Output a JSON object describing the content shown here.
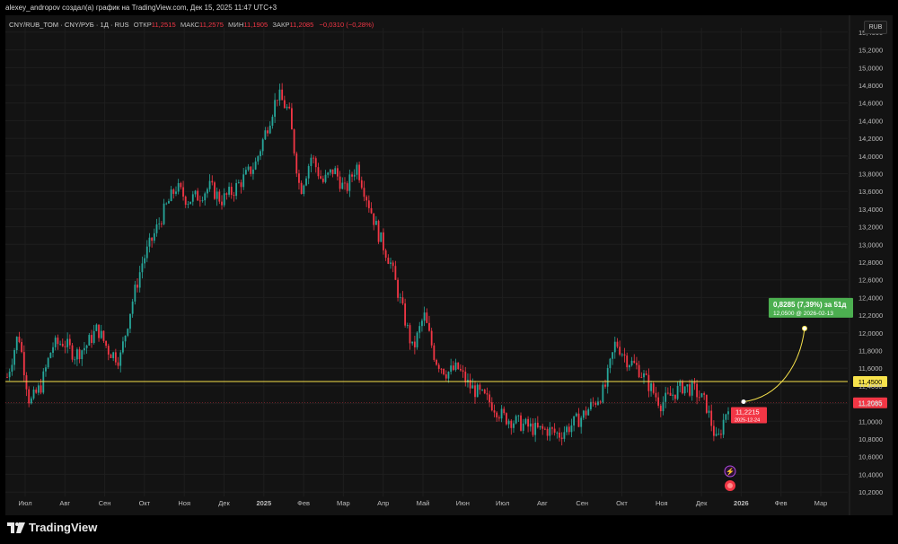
{
  "header": {
    "attribution": "alexey_andropov создал(а) график на TradingView.com, Дек 15, 2025 11:47 UTC+3"
  },
  "legend": {
    "symbol": "CNY/RUB_TOM · CNY/РУБ · 1Д · RUS",
    "open_label": "ОТКР",
    "open": "11,2515",
    "high_label": "МАКС",
    "high": "11,2575",
    "low_label": "МИН",
    "low": "11,1905",
    "close_label": "ЗАКР",
    "close": "11,2085",
    "change": "−0,0310 (−0,28%)"
  },
  "currency_button": "RUB",
  "price_axis": {
    "ticks": [
      "15,4000",
      "15,2000",
      "15,0000",
      "14,8000",
      "14,6000",
      "14,4000",
      "14,2000",
      "14,0000",
      "13,8000",
      "13,6000",
      "13,4000",
      "13,2000",
      "13,0000",
      "12,8000",
      "12,6000",
      "12,4000",
      "12,2000",
      "12,0000",
      "11,8000",
      "11,6000",
      "11,4000",
      "11,2000",
      "11,0000",
      "10,8000",
      "10,6000",
      "10,4000",
      "10,2000"
    ]
  },
  "time_axis": {
    "ticks": [
      "Июл",
      "Авг",
      "Сен",
      "Окт",
      "Ноя",
      "Дек",
      "2025",
      "Фев",
      "Мар",
      "Апр",
      "Май",
      "Июн",
      "Июл",
      "Авг",
      "Сен",
      "Окт",
      "Ноя",
      "Дек",
      "2026",
      "Фев",
      "Мар"
    ]
  },
  "horizontal_line": {
    "label": "11,4500",
    "color": "#f7e24b"
  },
  "last_price": {
    "label": "11,2085",
    "color": "#f23645"
  },
  "forecast": {
    "title": "0,8285 (7,39%) за 51д",
    "subtitle": "12,0500 @ 2026-02-13",
    "color": "#4caf50"
  },
  "price_marker": {
    "value": "11,2215",
    "date": "2025-12-24",
    "color": "#f23645"
  },
  "brand": {
    "name": "TradingView"
  },
  "colors": {
    "up": "#26a69a",
    "down": "#f23645",
    "background": "#131313"
  },
  "chart_data": {
    "type": "candlestick",
    "series": [
      {
        "name": "CNY/RUB_TOM",
        "points": [
          [
            "2024-07",
            11.5
          ],
          [
            "2024-07",
            12.0
          ],
          [
            "2024-07",
            11.2
          ],
          [
            "2024-07",
            11.4
          ],
          [
            "2024-07",
            11.85
          ],
          [
            "2024-08",
            11.9
          ],
          [
            "2024-08",
            11.75
          ],
          [
            "2024-08",
            11.85
          ],
          [
            "2024-08",
            12.05
          ],
          [
            "2024-08",
            11.8
          ],
          [
            "2024-09",
            11.7
          ],
          [
            "2024-09",
            12.3
          ],
          [
            "2024-09",
            12.8
          ],
          [
            "2024-09",
            13.1
          ],
          [
            "2024-09",
            13.4
          ],
          [
            "2024-10",
            13.65
          ],
          [
            "2024-10",
            13.5
          ],
          [
            "2024-10",
            13.55
          ],
          [
            "2024-10",
            13.65
          ],
          [
            "2024-10",
            13.5
          ],
          [
            "2024-11",
            13.6
          ],
          [
            "2024-11",
            13.75
          ],
          [
            "2024-11",
            13.9
          ],
          [
            "2024-11",
            14.3
          ],
          [
            "2024-11",
            14.7
          ],
          [
            "2024-12",
            14.5
          ],
          [
            "2024-12",
            13.6
          ],
          [
            "2024-12",
            14.0
          ],
          [
            "2024-12",
            13.7
          ],
          [
            "2025-01",
            13.85
          ],
          [
            "2025-01",
            13.6
          ],
          [
            "2025-01",
            13.9
          ],
          [
            "2025-02",
            13.5
          ],
          [
            "2025-02",
            13.1
          ],
          [
            "2025-02",
            12.8
          ],
          [
            "2025-03",
            12.3
          ],
          [
            "2025-03",
            11.8
          ],
          [
            "2025-03",
            12.2
          ],
          [
            "2025-03",
            11.7
          ],
          [
            "2025-04",
            11.55
          ],
          [
            "2025-04",
            11.6
          ],
          [
            "2025-04",
            11.4
          ],
          [
            "2025-05",
            11.3
          ],
          [
            "2025-05",
            11.2
          ],
          [
            "2025-05",
            11.05
          ],
          [
            "2025-06",
            11.0
          ],
          [
            "2025-06",
            10.95
          ],
          [
            "2025-06",
            10.9
          ],
          [
            "2025-07",
            10.9
          ],
          [
            "2025-07",
            10.85
          ],
          [
            "2025-07",
            10.95
          ],
          [
            "2025-08",
            11.05
          ],
          [
            "2025-08",
            11.2
          ],
          [
            "2025-08",
            11.35
          ],
          [
            "2025-09",
            11.9
          ],
          [
            "2025-09",
            11.7
          ],
          [
            "2025-09",
            11.6
          ],
          [
            "2025-10",
            11.4
          ],
          [
            "2025-10",
            11.2
          ],
          [
            "2025-10",
            11.3
          ],
          [
            "2025-11",
            11.4
          ],
          [
            "2025-11",
            11.35
          ],
          [
            "2025-11",
            11.2
          ],
          [
            "2025-12",
            10.75
          ],
          [
            "2025-12",
            11.2
          ]
        ]
      }
    ],
    "ylim": [
      10.15,
      15.45
    ],
    "xlabel": "",
    "ylabel": ""
  }
}
